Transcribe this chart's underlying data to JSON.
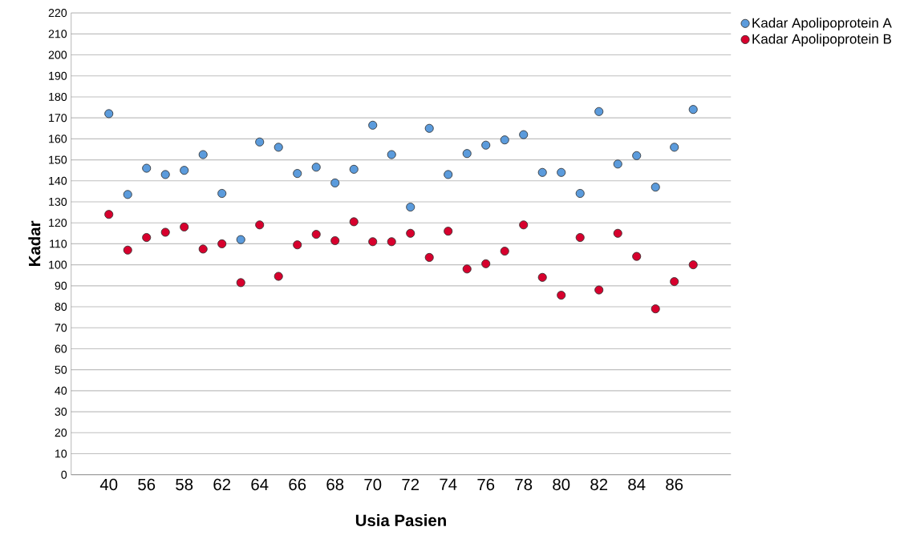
{
  "chart_data": {
    "type": "scatter",
    "xlabel": "Usia Pasien",
    "ylabel": "Kadar",
    "categories": [
      "40",
      null,
      "56",
      null,
      "58",
      null,
      "62",
      null,
      "64",
      null,
      "66",
      null,
      "68",
      null,
      "70",
      null,
      "72",
      null,
      "74",
      null,
      "76",
      null,
      "78",
      null,
      "80",
      null,
      "82",
      null,
      "84",
      null,
      "86",
      null
    ],
    "series": [
      {
        "name": "Kadar Apolipoprotein A",
        "color": "#5b9bdc",
        "values": [
          172,
          133.5,
          146,
          143,
          145,
          152.5,
          134,
          112,
          158.5,
          156,
          143.5,
          146.5,
          139,
          145.5,
          166.5,
          152.5,
          127.5,
          165,
          143,
          153,
          157,
          159.5,
          162,
          144,
          144,
          134,
          173,
          148,
          152,
          137,
          156,
          174
        ]
      },
      {
        "name": "Kadar Apolipoprotein B",
        "color": "#d7002d",
        "values": [
          124,
          107,
          113,
          115.5,
          118,
          107.5,
          110,
          91.5,
          119,
          94.5,
          109.5,
          114.5,
          111.5,
          120.5,
          111,
          111,
          115,
          103.5,
          116,
          98,
          100.5,
          106.5,
          119,
          94,
          85.5,
          113,
          88,
          115,
          104,
          79,
          92,
          100
        ]
      }
    ],
    "ylim": [
      0,
      220
    ],
    "yticks": [
      0,
      10,
      20,
      30,
      40,
      50,
      60,
      70,
      80,
      90,
      100,
      110,
      120,
      130,
      140,
      150,
      160,
      170,
      180,
      190,
      200,
      210,
      220
    ],
    "grid": "y",
    "legend": "top right",
    "marker": "circle"
  }
}
